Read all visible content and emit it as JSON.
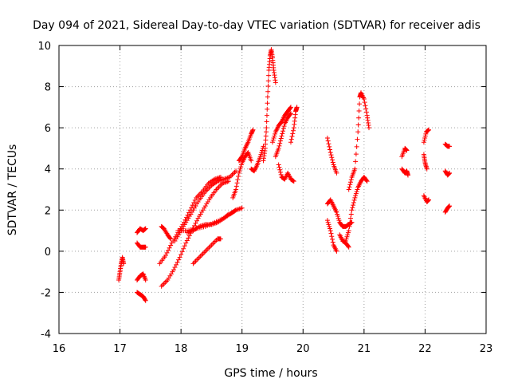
{
  "chart_data": {
    "type": "scatter",
    "title": "Day 094 of 2021, Sidereal Day-to-day VTEC variation (SDTVAR) for receiver adis",
    "xlabel": "GPS time / hours",
    "ylabel": "SDTVAR / TECUs",
    "xlim": [
      16,
      23
    ],
    "ylim": [
      -4,
      10
    ],
    "xticks": [
      "16",
      "17",
      "18",
      "19",
      "20",
      "21",
      "22",
      "23"
    ],
    "yticks": [
      "-4",
      "-2",
      "0",
      "2",
      "4",
      "6",
      "8",
      "10"
    ],
    "grid": true,
    "marker": "+",
    "colors": {
      "points": "#ff0000",
      "grid": "#a0a0a0",
      "axes": "#000000"
    },
    "traces": [
      [
        [
          16.98,
          -1.4
        ],
        [
          17.0,
          -1.0
        ],
        [
          17.02,
          -0.6
        ],
        [
          17.04,
          -0.3
        ],
        [
          17.06,
          -0.6
        ]
      ],
      [
        [
          17.28,
          0.9
        ],
        [
          17.33,
          1.1
        ],
        [
          17.38,
          1.0
        ],
        [
          17.42,
          1.1
        ]
      ],
      [
        [
          17.28,
          0.4
        ],
        [
          17.33,
          0.2
        ],
        [
          17.38,
          0.2
        ],
        [
          17.42,
          0.2
        ]
      ],
      [
        [
          17.28,
          -1.4
        ],
        [
          17.33,
          -1.2
        ],
        [
          17.38,
          -1.1
        ],
        [
          17.42,
          -1.4
        ]
      ],
      [
        [
          17.28,
          -2.0
        ],
        [
          17.33,
          -2.1
        ],
        [
          17.38,
          -2.2
        ],
        [
          17.42,
          -2.4
        ]
      ],
      [
        [
          17.68,
          1.2
        ],
        [
          17.72,
          1.1
        ],
        [
          17.78,
          0.8
        ],
        [
          17.83,
          0.6
        ]
      ],
      [
        [
          17.65,
          -0.6
        ],
        [
          17.75,
          -0.2
        ],
        [
          17.85,
          0.4
        ],
        [
          17.95,
          0.9
        ],
        [
          18.05,
          1.4
        ],
        [
          18.15,
          2.0
        ],
        [
          18.25,
          2.6
        ],
        [
          18.35,
          2.9
        ],
        [
          18.45,
          3.3
        ],
        [
          18.55,
          3.5
        ],
        [
          18.65,
          3.6
        ]
      ],
      [
        [
          17.68,
          -1.7
        ],
        [
          17.78,
          -1.4
        ],
        [
          17.88,
          -0.9
        ],
        [
          17.98,
          -0.3
        ],
        [
          18.08,
          0.4
        ],
        [
          18.18,
          1.0
        ],
        [
          18.28,
          1.6
        ],
        [
          18.38,
          2.1
        ],
        [
          18.48,
          2.6
        ],
        [
          18.58,
          3.0
        ],
        [
          18.68,
          3.3
        ],
        [
          18.78,
          3.4
        ]
      ],
      [
        [
          17.9,
          0.5
        ],
        [
          18.0,
          1.0
        ],
        [
          18.1,
          1.5
        ],
        [
          18.2,
          2.0
        ],
        [
          18.3,
          2.5
        ],
        [
          18.4,
          2.9
        ],
        [
          18.5,
          3.2
        ],
        [
          18.6,
          3.4
        ],
        [
          18.7,
          3.5
        ],
        [
          18.8,
          3.6
        ],
        [
          18.9,
          3.9
        ]
      ],
      [
        [
          17.95,
          1.0
        ],
        [
          18.1,
          1.0
        ],
        [
          18.25,
          1.1
        ],
        [
          18.4,
          1.2
        ],
        [
          18.55,
          1.4
        ],
        [
          18.7,
          1.6
        ],
        [
          18.8,
          1.8
        ],
        [
          18.85,
          1.9
        ],
        [
          18.9,
          2.0
        ],
        [
          19.0,
          2.1
        ]
      ],
      [
        [
          18.1,
          0.9
        ],
        [
          18.2,
          1.0
        ],
        [
          18.3,
          1.2
        ],
        [
          18.4,
          1.3
        ],
        [
          18.5,
          1.3
        ],
        [
          18.6,
          1.4
        ],
        [
          18.7,
          1.6
        ],
        [
          18.78,
          1.8
        ]
      ],
      [
        [
          18.2,
          -0.6
        ],
        [
          18.3,
          -0.3
        ],
        [
          18.4,
          0.0
        ],
        [
          18.5,
          0.3
        ],
        [
          18.6,
          0.6
        ],
        [
          18.65,
          0.6
        ]
      ],
      [
        [
          18.85,
          2.6
        ],
        [
          18.9,
          3.0
        ],
        [
          18.95,
          3.8
        ],
        [
          19.0,
          4.3
        ],
        [
          19.05,
          4.6
        ],
        [
          19.1,
          4.8
        ],
        [
          19.15,
          4.4
        ]
      ],
      [
        [
          18.95,
          4.4
        ],
        [
          19.0,
          4.6
        ],
        [
          19.05,
          5.0
        ],
        [
          19.1,
          5.3
        ],
        [
          19.15,
          5.7
        ],
        [
          19.18,
          5.9
        ]
      ],
      [
        [
          19.15,
          4.0
        ],
        [
          19.2,
          3.9
        ],
        [
          19.25,
          4.2
        ],
        [
          19.3,
          4.6
        ],
        [
          19.35,
          5.1
        ]
      ],
      [
        [
          19.35,
          4.4
        ],
        [
          19.38,
          5.0
        ],
        [
          19.4,
          6.0
        ],
        [
          19.42,
          7.5
        ],
        [
          19.44,
          8.8
        ],
        [
          19.46,
          9.5
        ],
        [
          19.48,
          9.8
        ],
        [
          19.5,
          9.4
        ],
        [
          19.52,
          8.8
        ],
        [
          19.55,
          8.2
        ]
      ],
      [
        [
          19.5,
          5.3
        ],
        [
          19.55,
          5.8
        ],
        [
          19.6,
          6.1
        ],
        [
          19.65,
          6.3
        ],
        [
          19.7,
          6.6
        ],
        [
          19.75,
          6.8
        ],
        [
          19.8,
          7.0
        ]
      ],
      [
        [
          19.55,
          4.6
        ],
        [
          19.6,
          5.0
        ],
        [
          19.65,
          5.6
        ],
        [
          19.7,
          6.2
        ],
        [
          19.75,
          6.5
        ],
        [
          19.8,
          6.7
        ]
      ],
      [
        [
          19.6,
          4.2
        ],
        [
          19.65,
          3.6
        ],
        [
          19.7,
          3.5
        ],
        [
          19.75,
          3.8
        ],
        [
          19.8,
          3.5
        ],
        [
          19.85,
          3.4
        ]
      ],
      [
        [
          19.8,
          5.3
        ],
        [
          19.85,
          6.0
        ],
        [
          19.88,
          6.8
        ],
        [
          19.9,
          7.0
        ]
      ],
      [
        [
          20.4,
          2.3
        ],
        [
          20.45,
          2.5
        ],
        [
          20.5,
          2.2
        ],
        [
          20.55,
          1.9
        ],
        [
          20.6,
          1.4
        ],
        [
          20.65,
          1.2
        ],
        [
          20.7,
          1.2
        ],
        [
          20.75,
          1.3
        ],
        [
          20.8,
          1.4
        ]
      ],
      [
        [
          20.4,
          1.5
        ],
        [
          20.45,
          1.0
        ],
        [
          20.5,
          0.3
        ],
        [
          20.55,
          0.0
        ]
      ],
      [
        [
          20.4,
          5.5
        ],
        [
          20.45,
          4.8
        ],
        [
          20.5,
          4.2
        ],
        [
          20.55,
          3.8
        ]
      ],
      [
        [
          20.6,
          0.8
        ],
        [
          20.65,
          0.5
        ],
        [
          20.7,
          0.4
        ],
        [
          20.75,
          0.2
        ]
      ],
      [
        [
          20.7,
          0.5
        ],
        [
          20.75,
          1.0
        ],
        [
          20.8,
          2.0
        ],
        [
          20.85,
          2.6
        ],
        [
          20.9,
          3.1
        ],
        [
          20.95,
          3.4
        ],
        [
          21.0,
          3.6
        ],
        [
          21.05,
          3.4
        ]
      ],
      [
        [
          20.75,
          3.0
        ],
        [
          20.8,
          3.6
        ],
        [
          20.85,
          4.0
        ],
        [
          20.9,
          5.8
        ],
        [
          20.93,
          7.5
        ],
        [
          20.95,
          7.7
        ],
        [
          21.0,
          7.4
        ],
        [
          21.05,
          6.6
        ],
        [
          21.08,
          6.0
        ]
      ],
      [
        [
          21.62,
          4.6
        ],
        [
          21.67,
          5.0
        ],
        [
          21.7,
          4.9
        ]
      ],
      [
        [
          21.62,
          4.0
        ],
        [
          21.67,
          3.8
        ],
        [
          21.7,
          3.9
        ],
        [
          21.72,
          3.7
        ]
      ],
      [
        [
          21.98,
          5.3
        ],
        [
          22.02,
          5.8
        ],
        [
          22.06,
          5.9
        ]
      ],
      [
        [
          21.98,
          4.7
        ],
        [
          22.0,
          4.3
        ],
        [
          22.03,
          4.0
        ]
      ],
      [
        [
          21.98,
          2.7
        ],
        [
          22.03,
          2.4
        ],
        [
          22.06,
          2.5
        ]
      ],
      [
        [
          22.33,
          5.2
        ],
        [
          22.37,
          5.1
        ],
        [
          22.4,
          5.1
        ]
      ],
      [
        [
          22.33,
          3.9
        ],
        [
          22.37,
          3.7
        ],
        [
          22.4,
          3.8
        ]
      ],
      [
        [
          22.33,
          1.9
        ],
        [
          22.37,
          2.1
        ],
        [
          22.4,
          2.2
        ]
      ]
    ]
  }
}
